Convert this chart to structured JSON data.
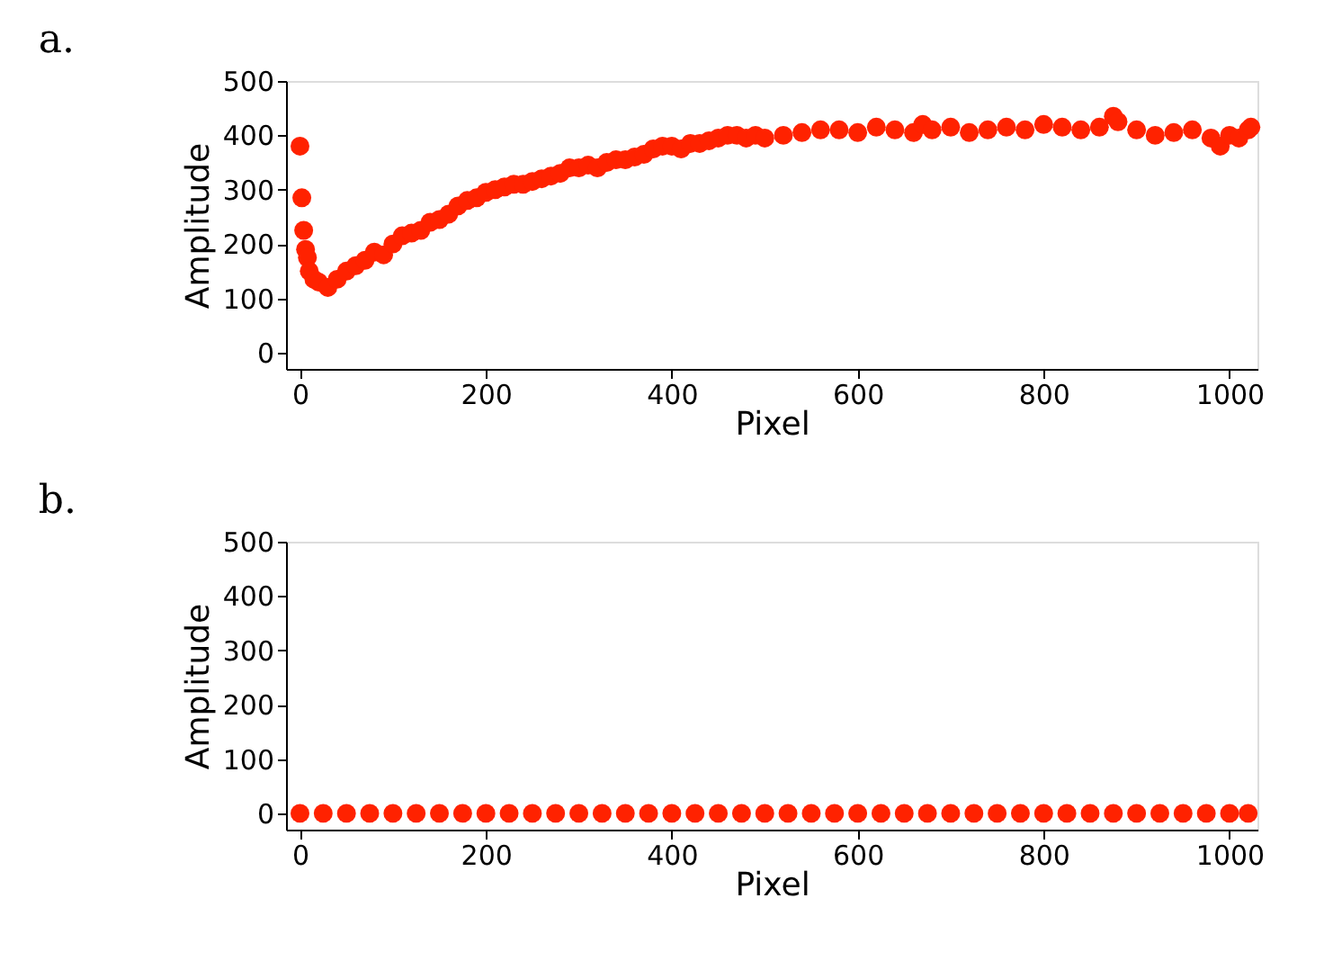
{
  "chart_data": [
    {
      "type": "scatter",
      "title": "a.",
      "xlabel": "Pixel",
      "ylabel": "Amplitude",
      "xlim": [
        -15,
        1030
      ],
      "ylim": [
        -30,
        500
      ],
      "xticks": [
        0,
        200,
        400,
        600,
        800,
        1000
      ],
      "yticks": [
        0,
        100,
        200,
        300,
        400,
        500
      ],
      "grid": false,
      "marker": "circle",
      "series": [
        {
          "color": "#ff2200",
          "x": [
            0,
            2,
            4,
            6,
            8,
            10,
            15,
            20,
            30,
            40,
            50,
            60,
            70,
            80,
            90,
            100,
            110,
            120,
            130,
            140,
            150,
            160,
            170,
            180,
            190,
            200,
            210,
            220,
            230,
            240,
            250,
            260,
            270,
            280,
            290,
            300,
            310,
            320,
            330,
            340,
            350,
            360,
            370,
            380,
            390,
            400,
            410,
            420,
            430,
            440,
            450,
            460,
            470,
            480,
            490,
            500,
            520,
            540,
            560,
            580,
            600,
            620,
            640,
            660,
            670,
            680,
            700,
            720,
            740,
            760,
            780,
            800,
            820,
            840,
            860,
            875,
            880,
            900,
            920,
            940,
            960,
            980,
            990,
            1000,
            1010,
            1020,
            1023
          ],
          "values": [
            380,
            285,
            225,
            190,
            175,
            150,
            135,
            130,
            120,
            135,
            150,
            160,
            170,
            185,
            180,
            200,
            215,
            220,
            225,
            240,
            245,
            255,
            270,
            280,
            285,
            295,
            300,
            305,
            310,
            310,
            315,
            320,
            325,
            330,
            340,
            340,
            345,
            340,
            350,
            355,
            355,
            360,
            365,
            375,
            380,
            380,
            375,
            385,
            385,
            390,
            395,
            400,
            400,
            395,
            400,
            395,
            400,
            405,
            410,
            410,
            405,
            415,
            410,
            405,
            420,
            410,
            415,
            405,
            410,
            415,
            410,
            420,
            415,
            410,
            415,
            435,
            425,
            410,
            400,
            405,
            410,
            395,
            380,
            400,
            395,
            410,
            415
          ]
        }
      ]
    },
    {
      "type": "scatter",
      "title": "b.",
      "xlabel": "Pixel",
      "ylabel": "Amplitude",
      "xlim": [
        -15,
        1030
      ],
      "ylim": [
        -30,
        500
      ],
      "xticks": [
        0,
        200,
        400,
        600,
        800,
        1000
      ],
      "yticks": [
        0,
        100,
        200,
        300,
        400,
        500
      ],
      "grid": false,
      "marker": "circle",
      "series": [
        {
          "color": "#ff2200",
          "x": [
            0,
            25,
            50,
            75,
            100,
            125,
            150,
            175,
            200,
            225,
            250,
            275,
            300,
            325,
            350,
            375,
            400,
            425,
            450,
            475,
            500,
            525,
            550,
            575,
            600,
            625,
            650,
            675,
            700,
            725,
            750,
            775,
            800,
            825,
            850,
            875,
            900,
            925,
            950,
            975,
            1000,
            1020
          ],
          "values": [
            0,
            0,
            0,
            0,
            0,
            0,
            0,
            0,
            0,
            0,
            0,
            0,
            0,
            0,
            0,
            0,
            0,
            0,
            0,
            0,
            0,
            0,
            0,
            0,
            0,
            0,
            0,
            0,
            0,
            0,
            0,
            0,
            0,
            0,
            0,
            0,
            0,
            0,
            0,
            0,
            0,
            0
          ]
        }
      ]
    }
  ]
}
